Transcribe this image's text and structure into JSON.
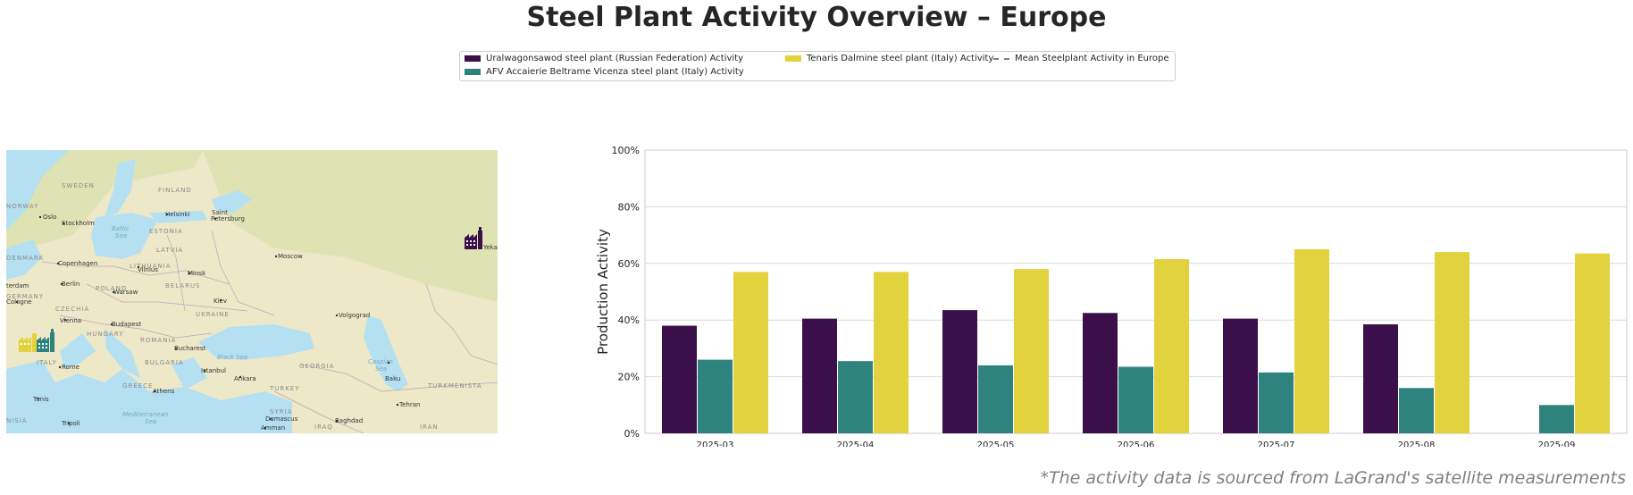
{
  "title": "Steel Plant Activity Overview – Europe",
  "legend": {
    "items": [
      {
        "label": "Uralwagonsawod steel plant (Russian Federation) Activity",
        "color": "#3b0f49",
        "style": "box"
      },
      {
        "label": "Tenaris Dalmine steel plant (Italy) Activity",
        "color": "#e2d23e",
        "style": "box"
      },
      {
        "label": "Mean Steelplant Activity in Europe",
        "color": "#808080",
        "style": "dash"
      },
      {
        "label": "AFV Accaierie Beltrame Vicenza steel plant (Italy) Activity",
        "color": "#2e837e",
        "style": "box"
      }
    ]
  },
  "map": {
    "colors": {
      "land": "#ede8c8",
      "land_green": "#dfe3b4",
      "water": "#b4e0f2",
      "border": "#b9a7b9"
    },
    "labels": {
      "sweden": "SWEDEN",
      "finland": "FINLAND",
      "norway": "NORWAY",
      "oslo": "Oslo",
      "stockholm": "Stockholm",
      "helsinki": "Helsinki",
      "saint_petersburg_1": "Saint",
      "saint_petersburg_2": "Petersburg",
      "baltic_1": "Baltic",
      "baltic_2": "Sea",
      "estonia": "ESTONIA",
      "latvia": "LATVIA",
      "denmark": "DENMARK",
      "copenhagen": "Copenhagen",
      "lithuania": "LITHUANIA",
      "vilnius": "Vilnius",
      "moscow": "Moscow",
      "minsk": "Minsk",
      "amsterdam": "terdam",
      "berlin": "Berlin",
      "poland": "POLAND",
      "warsaw": "Warsaw",
      "belarus": "BELARUS",
      "germany": "GERMANY",
      "cologne": "Cologne",
      "czechia": "CZECHIA",
      "kiev": "Kiev",
      "vienna": "Vienna",
      "budapest": "Budapest",
      "ukraine": "UKRAINE",
      "hungary": "HUNGARY",
      "volgograd": "Volgograd",
      "romania": "ROMANIA",
      "italy": "ITALY",
      "bucharest": "Bucharest",
      "rome": "Rome",
      "bulgaria": "BULGARIA",
      "black_sea": "Black Sea",
      "georgia": "GEORGIA",
      "caspian_1": "Caspian",
      "caspian_2": "Sea",
      "istanbul": "Istanbul",
      "ankara": "Ankara",
      "baku": "Baku",
      "turkey": "TURKEY",
      "greece": "GREECE",
      "athens": "Athens",
      "turkmenista": "TURKMENISTA",
      "tunis": "Tunis",
      "tehran": "Tehran",
      "syria": "SYRIA",
      "med_1": "Mediterranean",
      "med_2": "Sea",
      "nisia": "NISIA",
      "tripoli": "Tripoli",
      "damascus": "Damascus",
      "amman": "Amman",
      "iraq": "IRAQ",
      "baghdad": "Baghdad",
      "iran": "IRAN",
      "ekat": "Yeka"
    }
  },
  "chart_data": {
    "type": "bar",
    "categories": [
      "2025-03",
      "2025-04",
      "2025-05",
      "2025-06",
      "2025-07",
      "2025-08",
      "2025-09"
    ],
    "series": [
      {
        "name": "Uralwagonsawod steel plant (Russian Federation) Activity",
        "color": "#3b0f49",
        "values": [
          38,
          40.5,
          43.5,
          42.5,
          40.5,
          38.5,
          null
        ]
      },
      {
        "name": "AFV Accaierie Beltrame Vicenza steel plant (Italy) Activity",
        "color": "#2e837e",
        "values": [
          26,
          25.5,
          24,
          23.5,
          21.5,
          16,
          10
        ]
      },
      {
        "name": "Tenaris Dalmine steel plant (Italy) Activity",
        "color": "#e2d23e",
        "values": [
          57,
          57,
          58,
          61.5,
          65,
          64,
          63.5
        ]
      }
    ],
    "ylabel": "Production Activity",
    "xlabel": "",
    "ylim": [
      0,
      100
    ],
    "yticks": [
      0,
      20,
      40,
      60,
      80,
      100
    ],
    "ytick_labels": [
      "0%",
      "20%",
      "40%",
      "60%",
      "80%",
      "100%"
    ],
    "grid": true
  },
  "footnote": "*The activity data is sourced from LaGrand's satellite measurements"
}
